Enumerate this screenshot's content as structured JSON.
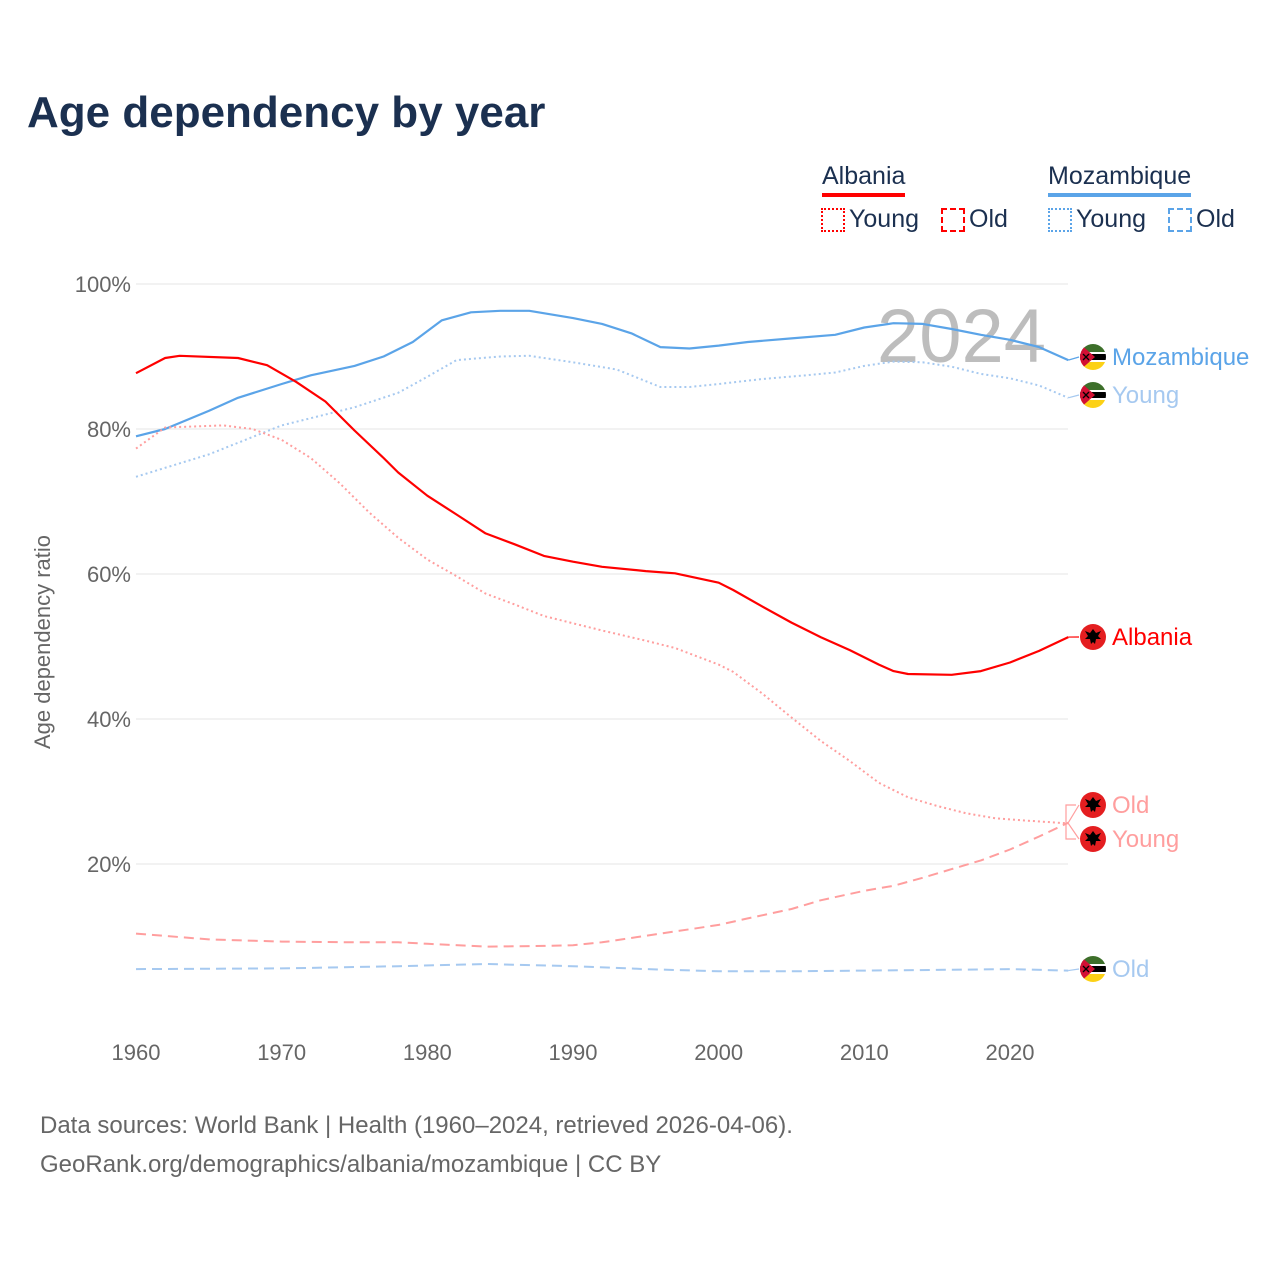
{
  "title": "Age dependency by year",
  "legend": {
    "groups": [
      {
        "name": "Albania",
        "color": "#ff0000",
        "young_label": "Young",
        "old_label": "Old"
      },
      {
        "name": "Mozambique",
        "color": "#5ba4e8",
        "young_label": "Young",
        "old_label": "Old"
      }
    ]
  },
  "watermark_year": "2024",
  "footer": {
    "line1": "Data sources: World Bank | Health (1960–2024, retrieved 2026-04-06).",
    "line2": "GeoRank.org/demographics/albania/mozambique | CC BY"
  },
  "chart_data": {
    "type": "line",
    "title": "Age dependency by year",
    "xlabel": "",
    "ylabel": "Age dependency ratio",
    "xlim": [
      1960,
      2024
    ],
    "ylim": [
      0,
      100
    ],
    "xticks": [
      1960,
      1970,
      1980,
      1990,
      2000,
      2010,
      2020
    ],
    "xtick_labels": [
      "1960",
      "1970",
      "1980",
      "1990",
      "2000",
      "2010",
      "2020"
    ],
    "yticks": [
      20,
      40,
      60,
      80,
      100
    ],
    "ytick_labels": [
      "20%",
      "40%",
      "60%",
      "80%",
      "100%"
    ],
    "grid": true,
    "legend_position": "top-right",
    "series": [
      {
        "name": "Mozambique",
        "label": "Mozambique",
        "country": "Mozambique",
        "style": "solid",
        "color": "#5ba4e8",
        "points": [
          [
            1960,
            79
          ],
          [
            1962,
            80
          ],
          [
            1965,
            82.5
          ],
          [
            1967,
            84.3
          ],
          [
            1970,
            86.2
          ],
          [
            1972,
            87.4
          ],
          [
            1975,
            88.7
          ],
          [
            1977,
            90
          ],
          [
            1979,
            92
          ],
          [
            1981,
            95
          ],
          [
            1983,
            96.1
          ],
          [
            1985,
            96.3
          ],
          [
            1987,
            96.3
          ],
          [
            1990,
            95.3
          ],
          [
            1992,
            94.5
          ],
          [
            1994,
            93.2
          ],
          [
            1996,
            91.3
          ],
          [
            1998,
            91.1
          ],
          [
            2000,
            91.5
          ],
          [
            2002,
            92
          ],
          [
            2005,
            92.5
          ],
          [
            2008,
            93
          ],
          [
            2010,
            94
          ],
          [
            2012,
            94.6
          ],
          [
            2014,
            94.5
          ],
          [
            2016,
            93.8
          ],
          [
            2018,
            93
          ],
          [
            2020,
            92.3
          ],
          [
            2022,
            91.3
          ],
          [
            2024,
            89.5
          ]
        ]
      },
      {
        "name": "Mozambique Young",
        "label": "Young",
        "country": "Mozambique",
        "style": "dotted",
        "color": "#a6c9f0",
        "points": [
          [
            1960,
            73.4
          ],
          [
            1965,
            76.5
          ],
          [
            1970,
            80.5
          ],
          [
            1975,
            83
          ],
          [
            1978,
            85
          ],
          [
            1980,
            87.2
          ],
          [
            1982,
            89.5
          ],
          [
            1985,
            90
          ],
          [
            1987,
            90.1
          ],
          [
            1990,
            89.2
          ],
          [
            1993,
            88.2
          ],
          [
            1996,
            85.8
          ],
          [
            1998,
            85.8
          ],
          [
            2000,
            86.2
          ],
          [
            2003,
            86.9
          ],
          [
            2006,
            87.4
          ],
          [
            2008,
            87.8
          ],
          [
            2010,
            88.7
          ],
          [
            2012,
            89.3
          ],
          [
            2014,
            89.2
          ],
          [
            2016,
            88.6
          ],
          [
            2018,
            87.6
          ],
          [
            2020,
            87
          ],
          [
            2022,
            86
          ],
          [
            2024,
            84.3
          ]
        ]
      },
      {
        "name": "Mozambique Old",
        "label": "Old",
        "country": "Mozambique",
        "style": "dashed",
        "color": "#a6c9f0",
        "points": [
          [
            1960,
            5.5
          ],
          [
            1970,
            5.6
          ],
          [
            1978,
            5.9
          ],
          [
            1984,
            6.2
          ],
          [
            1990,
            5.9
          ],
          [
            1995,
            5.5
          ],
          [
            2000,
            5.2
          ],
          [
            2005,
            5.2
          ],
          [
            2010,
            5.3
          ],
          [
            2015,
            5.4
          ],
          [
            2020,
            5.5
          ],
          [
            2024,
            5.3
          ]
        ]
      },
      {
        "name": "Albania",
        "label": "Albania",
        "country": "Albania",
        "style": "solid",
        "color": "#ff0000",
        "points": [
          [
            1960,
            87.7
          ],
          [
            1962,
            89.8
          ],
          [
            1963,
            90.1
          ],
          [
            1967,
            89.8
          ],
          [
            1969,
            88.8
          ],
          [
            1971,
            86.5
          ],
          [
            1973,
            83.8
          ],
          [
            1975,
            79.8
          ],
          [
            1977,
            76
          ],
          [
            1978,
            74
          ],
          [
            1980,
            70.8
          ],
          [
            1982,
            68.2
          ],
          [
            1984,
            65.6
          ],
          [
            1986,
            64.1
          ],
          [
            1988,
            62.5
          ],
          [
            1990,
            61.7
          ],
          [
            1992,
            61
          ],
          [
            1995,
            60.4
          ],
          [
            1997,
            60.1
          ],
          [
            2000,
            58.8
          ],
          [
            2001,
            57.8
          ],
          [
            2003,
            55.5
          ],
          [
            2005,
            53.3
          ],
          [
            2007,
            51.3
          ],
          [
            2009,
            49.5
          ],
          [
            2011,
            47.5
          ],
          [
            2012,
            46.6
          ],
          [
            2013,
            46.2
          ],
          [
            2016,
            46.1
          ],
          [
            2018,
            46.6
          ],
          [
            2020,
            47.8
          ],
          [
            2022,
            49.4
          ],
          [
            2024,
            51.3
          ]
        ]
      },
      {
        "name": "Albania Young",
        "label": "Young",
        "country": "Albania",
        "style": "dotted",
        "color": "#ff9e9e",
        "points": [
          [
            1960,
            77.3
          ],
          [
            1962,
            80.2
          ],
          [
            1966,
            80.5
          ],
          [
            1968,
            80
          ],
          [
            1970,
            78.5
          ],
          [
            1972,
            76
          ],
          [
            1974,
            72.5
          ],
          [
            1976,
            68.5
          ],
          [
            1978,
            65
          ],
          [
            1980,
            62
          ],
          [
            1982,
            59.7
          ],
          [
            1984,
            57.3
          ],
          [
            1986,
            55.8
          ],
          [
            1988,
            54.2
          ],
          [
            1990,
            53.2
          ],
          [
            1992,
            52.2
          ],
          [
            1995,
            50.8
          ],
          [
            1997,
            49.8
          ],
          [
            2000,
            47.5
          ],
          [
            2001,
            46.5
          ],
          [
            2003,
            43.5
          ],
          [
            2005,
            40.2
          ],
          [
            2007,
            37
          ],
          [
            2009,
            34.2
          ],
          [
            2011,
            31.2
          ],
          [
            2013,
            29.2
          ],
          [
            2015,
            28
          ],
          [
            2017,
            27
          ],
          [
            2019,
            26.3
          ],
          [
            2021,
            26
          ],
          [
            2024,
            25.6
          ]
        ]
      },
      {
        "name": "Albania Old",
        "label": "Old",
        "country": "Albania",
        "style": "dashed",
        "color": "#ff9e9e",
        "points": [
          [
            1960,
            10.4
          ],
          [
            1965,
            9.6
          ],
          [
            1970,
            9.3
          ],
          [
            1975,
            9.2
          ],
          [
            1978,
            9.2
          ],
          [
            1980,
            9
          ],
          [
            1984,
            8.6
          ],
          [
            1988,
            8.7
          ],
          [
            1990,
            8.8
          ],
          [
            1992,
            9.2
          ],
          [
            1995,
            10.1
          ],
          [
            1998,
            11
          ],
          [
            2000,
            11.6
          ],
          [
            2002,
            12.5
          ],
          [
            2005,
            13.8
          ],
          [
            2007,
            15
          ],
          [
            2010,
            16.3
          ],
          [
            2012,
            17
          ],
          [
            2014,
            18.1
          ],
          [
            2016,
            19.3
          ],
          [
            2018,
            20.5
          ],
          [
            2020,
            22
          ],
          [
            2022,
            23.8
          ],
          [
            2024,
            25.7
          ]
        ]
      }
    ]
  }
}
